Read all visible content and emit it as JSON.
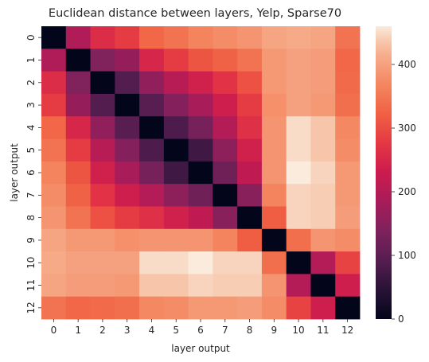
{
  "chart_data": {
    "type": "heatmap",
    "title": "Euclidean distance between layers, Yelp, Sparse70",
    "xlabel": "layer output",
    "ylabel": "layer output",
    "x_categories": [
      "0",
      "1",
      "2",
      "3",
      "4",
      "5",
      "6",
      "7",
      "8",
      "9",
      "10",
      "11",
      "12"
    ],
    "y_categories": [
      "0",
      "1",
      "2",
      "3",
      "4",
      "5",
      "6",
      "7",
      "8",
      "9",
      "10",
      "11",
      "12"
    ],
    "values": [
      [
        0,
        195,
        260,
        280,
        330,
        345,
        365,
        375,
        385,
        405,
        410,
        405,
        345
      ],
      [
        195,
        0,
        140,
        165,
        250,
        280,
        310,
        325,
        345,
        390,
        400,
        395,
        330
      ],
      [
        260,
        140,
        0,
        90,
        160,
        205,
        240,
        270,
        305,
        390,
        400,
        395,
        335
      ],
      [
        280,
        165,
        90,
        0,
        95,
        145,
        185,
        235,
        280,
        380,
        400,
        390,
        340
      ],
      [
        330,
        250,
        160,
        95,
        0,
        85,
        130,
        200,
        265,
        385,
        450,
        435,
        370
      ],
      [
        345,
        280,
        205,
        145,
        85,
        0,
        70,
        155,
        240,
        385,
        450,
        435,
        375
      ],
      [
        365,
        310,
        240,
        185,
        130,
        70,
        0,
        120,
        215,
        385,
        460,
        445,
        390
      ],
      [
        375,
        325,
        270,
        235,
        200,
        155,
        120,
        0,
        150,
        365,
        445,
        440,
        390
      ],
      [
        385,
        345,
        305,
        280,
        265,
        240,
        215,
        150,
        0,
        320,
        445,
        440,
        395
      ],
      [
        405,
        390,
        390,
        380,
        385,
        385,
        385,
        365,
        320,
        0,
        340,
        385,
        375
      ],
      [
        410,
        400,
        400,
        400,
        450,
        450,
        460,
        445,
        445,
        340,
        0,
        200,
        290
      ],
      [
        405,
        395,
        395,
        390,
        435,
        435,
        445,
        440,
        440,
        385,
        200,
        0,
        235
      ],
      [
        345,
        330,
        335,
        340,
        370,
        375,
        390,
        390,
        395,
        375,
        290,
        235,
        0
      ]
    ],
    "zlim": [
      0,
      460
    ],
    "colorbar_ticks": [
      0,
      100,
      200,
      300,
      400
    ],
    "colormap": "rocket",
    "grid": false
  }
}
